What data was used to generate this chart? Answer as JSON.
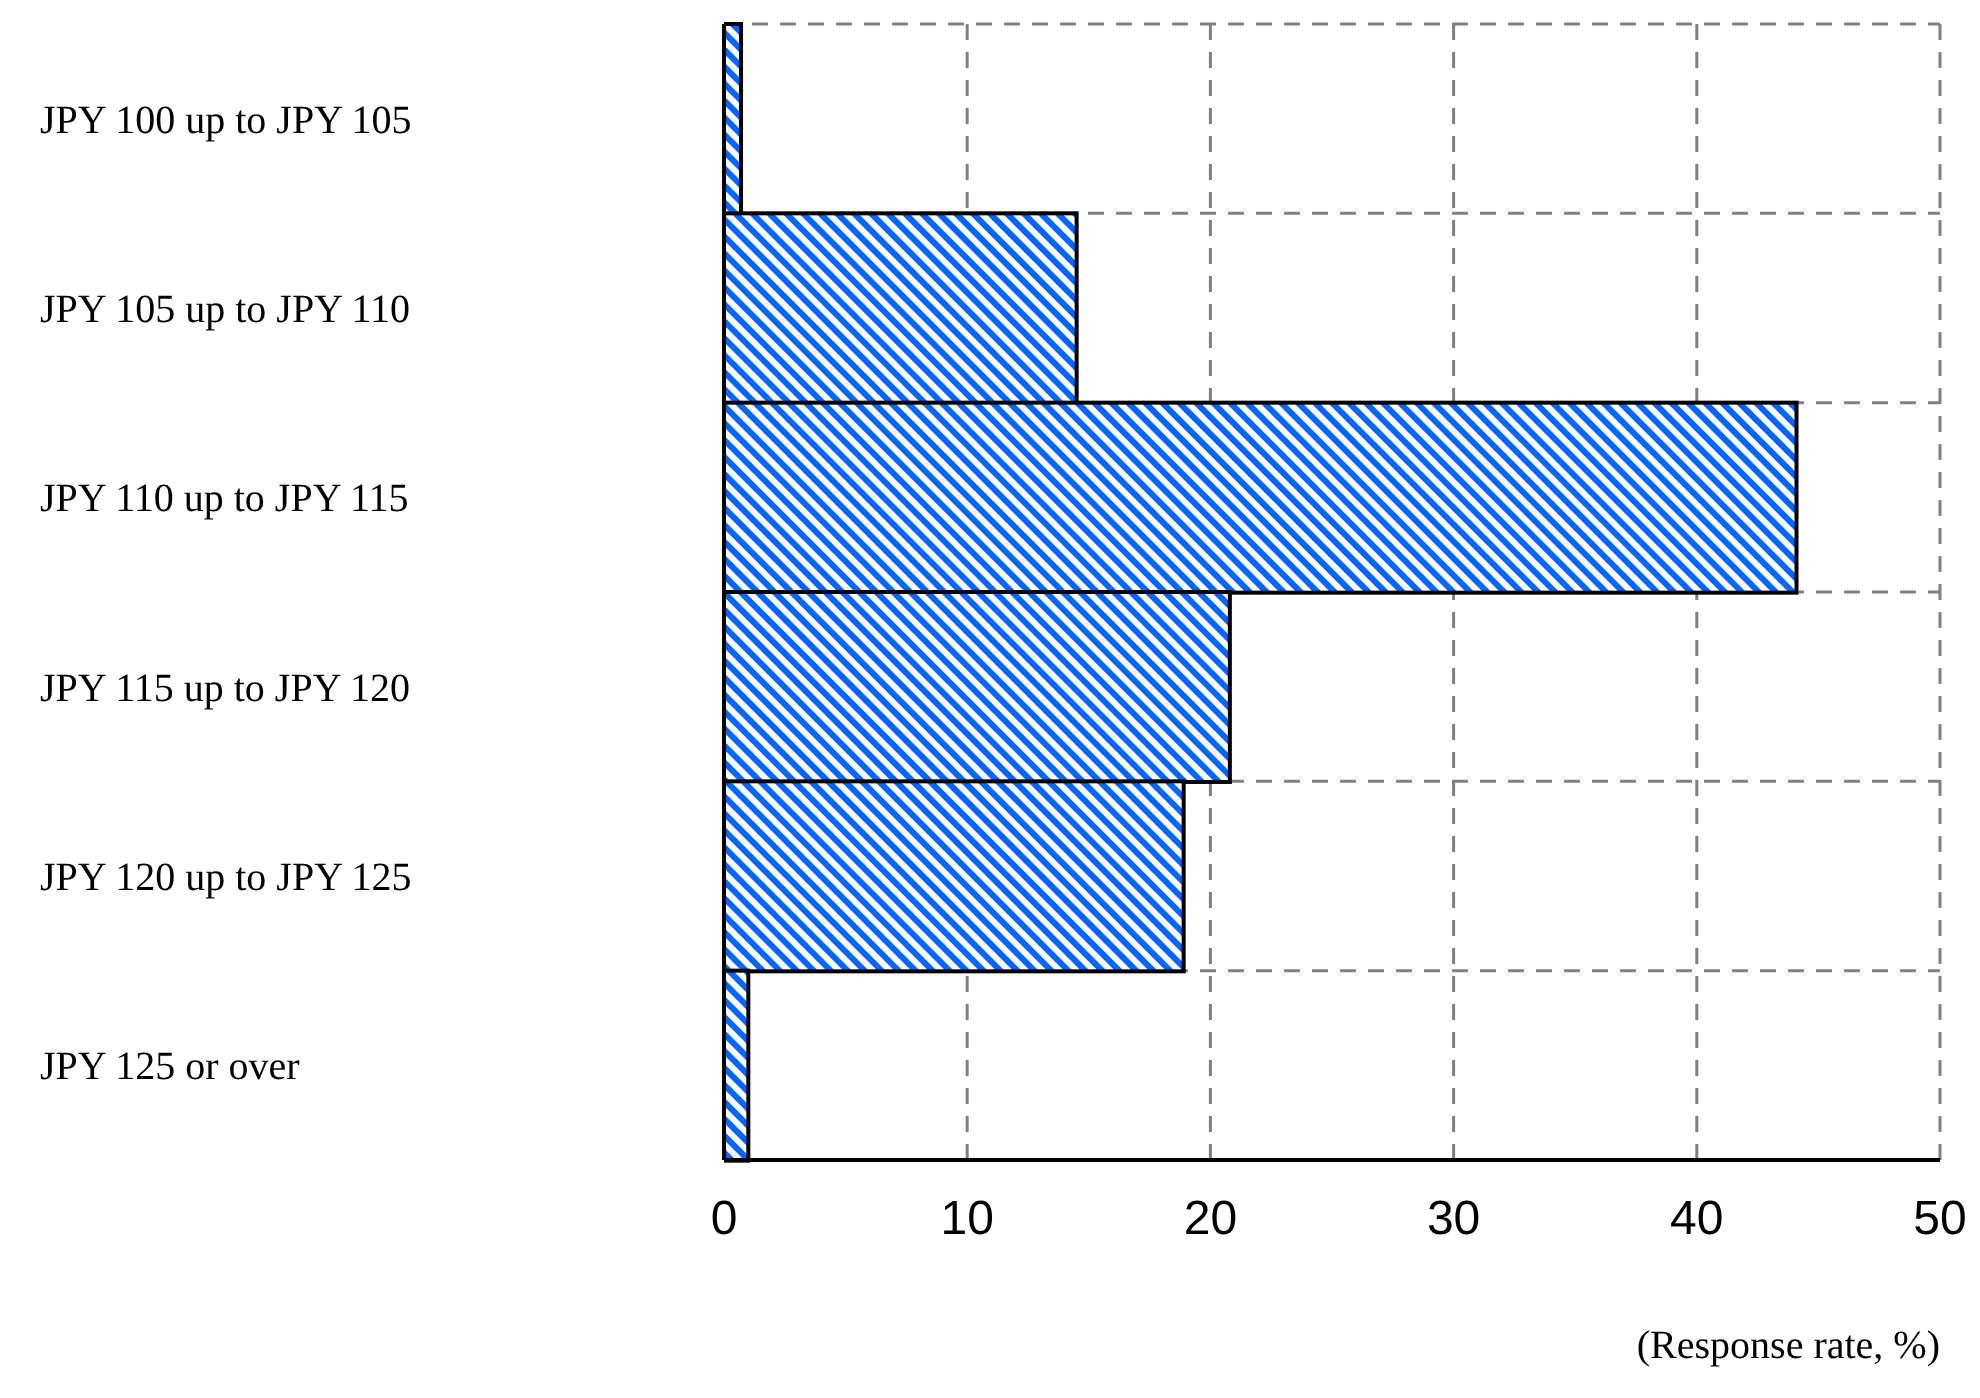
{
  "chart_data": {
    "type": "bar",
    "orientation": "horizontal",
    "xlabel": "(Response rate, %)",
    "categories": [
      "JPY 100 up to JPY 105",
      "JPY 105 up to JPY 110",
      "JPY 110 up to JPY 115",
      "JPY 115 up to JPY 120",
      "JPY 120 up to JPY 125",
      "JPY 125 or over"
    ],
    "values": [
      0.7,
      14.5,
      44.1,
      20.8,
      18.9,
      1.0
    ],
    "color": "#0066ff",
    "xlim": [
      0,
      50
    ],
    "xticks": [
      0,
      10,
      20,
      30,
      40,
      50
    ],
    "grid": true
  }
}
